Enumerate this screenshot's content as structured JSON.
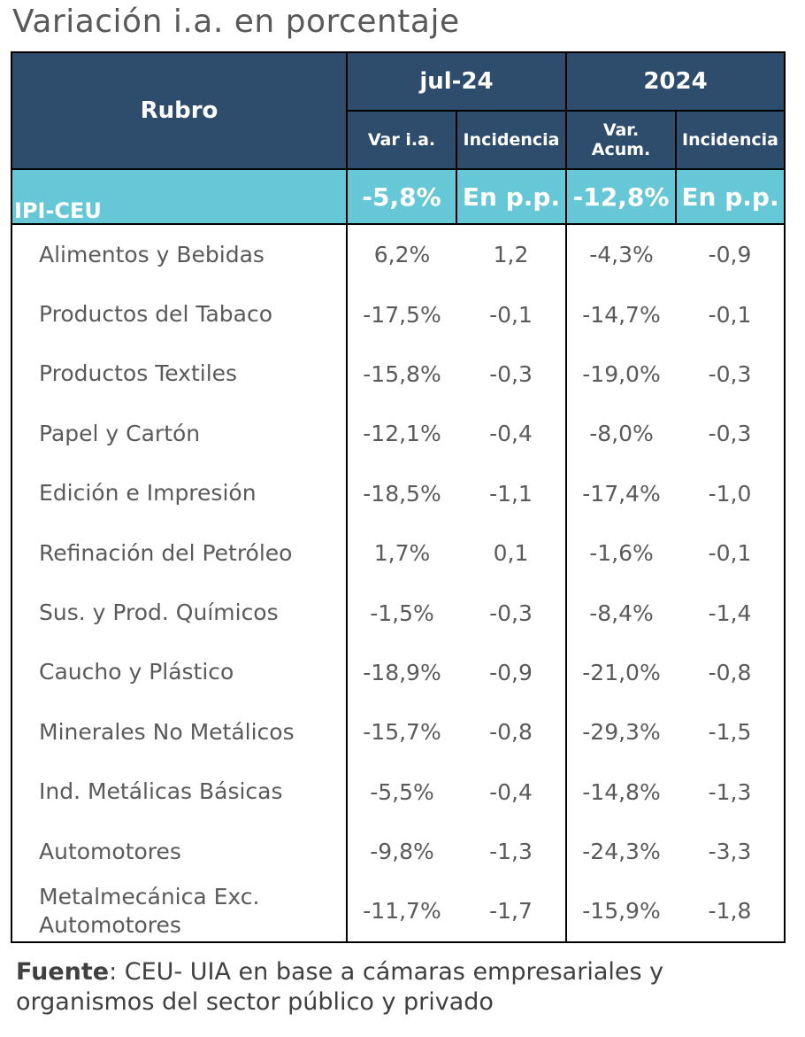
{
  "title": "Variación i.a. en porcentaje",
  "header": {
    "rubro": "Rubro",
    "period1": "jul-24",
    "period2": "2024",
    "sub": {
      "var_ia": "Var i.a.",
      "incidencia1": "Incidencia",
      "var_acum": "Var. Acum.",
      "incidencia2": "Incidencia"
    }
  },
  "summary": {
    "label": "IPI-CEU",
    "var_ia": "-5,8%",
    "inc1": "En p.p.",
    "var_acum": "-12,8%",
    "inc2": "En p.p."
  },
  "rows": [
    {
      "name": "Alimentos y Bebidas",
      "var_ia": "6,2%",
      "inc1": "1,2",
      "var_acum": "-4,3%",
      "inc2": "-0,9"
    },
    {
      "name": "Productos del Tabaco",
      "var_ia": "-17,5%",
      "inc1": "-0,1",
      "var_acum": "-14,7%",
      "inc2": "-0,1"
    },
    {
      "name": "Productos Textiles",
      "var_ia": "-15,8%",
      "inc1": "-0,3",
      "var_acum": "-19,0%",
      "inc2": "-0,3"
    },
    {
      "name": "Papel y Cartón",
      "var_ia": "-12,1%",
      "inc1": "-0,4",
      "var_acum": "-8,0%",
      "inc2": "-0,3"
    },
    {
      "name": "Edición e Impresión",
      "var_ia": "-18,5%",
      "inc1": "-1,1",
      "var_acum": "-17,4%",
      "inc2": "-1,0"
    },
    {
      "name": "Refinación del Petróleo",
      "var_ia": "1,7%",
      "inc1": "0,1",
      "var_acum": "-1,6%",
      "inc2": "-0,1"
    },
    {
      "name": "Sus. y Prod. Químicos",
      "var_ia": "-1,5%",
      "inc1": "-0,3",
      "var_acum": "-8,4%",
      "inc2": "-1,4"
    },
    {
      "name": "Caucho y Plástico",
      "var_ia": "-18,9%",
      "inc1": "-0,9",
      "var_acum": "-21,0%",
      "inc2": "-0,8"
    },
    {
      "name": "Minerales No Metálicos",
      "var_ia": "-15,7%",
      "inc1": "-0,8",
      "var_acum": "-29,3%",
      "inc2": "-1,5"
    },
    {
      "name": "Ind. Metálicas Básicas",
      "var_ia": "-5,5%",
      "inc1": "-0,4",
      "var_acum": "-14,8%",
      "inc2": "-1,3"
    },
    {
      "name": "Automotores",
      "var_ia": "-9,8%",
      "inc1": "-1,3",
      "var_acum": "-24,3%",
      "inc2": "-3,3"
    },
    {
      "name": "Metalmecánica Exc. Automotores",
      "var_ia": "-11,7%",
      "inc1": "-1,7",
      "var_acum": "-15,9%",
      "inc2": "-1,8"
    }
  ],
  "colors": {
    "header_bg": "#2e4d6d",
    "summary_bg": "#66c7d6",
    "positive": "#4aa542",
    "negative": "#c03a4f",
    "text": "#5a5a5a"
  },
  "source": {
    "label": "Fuente",
    "text": ": CEU- UIA en base a cámaras empresariales y organismos del sector público y privado"
  }
}
